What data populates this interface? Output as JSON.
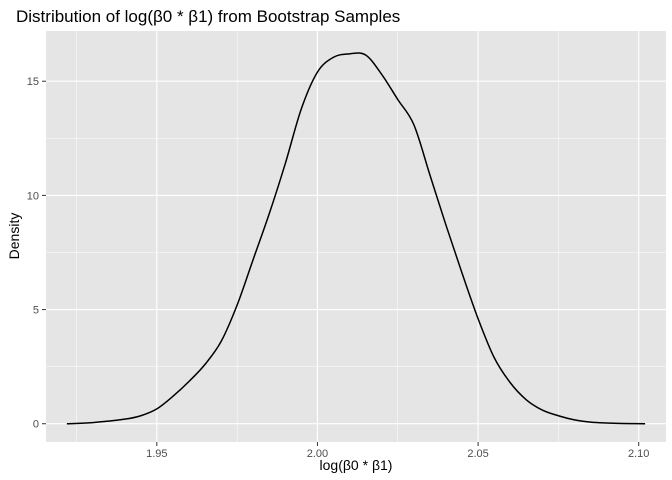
{
  "chart_data": {
    "type": "area",
    "title": "Distribution of log(β0 * β1) from Bootstrap Samples",
    "xlabel": "log(β0 * β1)",
    "ylabel": "Density",
    "xlim": [
      1.9155,
      2.1085
    ],
    "ylim": [
      -0.8,
      17.2
    ],
    "x_ticks": [
      1.95,
      2.0,
      2.05,
      2.1
    ],
    "x_tick_labels": [
      "1.95",
      "2.00",
      "2.05",
      "2.10"
    ],
    "y_ticks": [
      0,
      5,
      10,
      15
    ],
    "y_tick_labels": [
      "0",
      "5",
      "10",
      "15"
    ],
    "grid": true,
    "colors": {
      "panel": "#e5e5e5",
      "grid": "#ffffff",
      "line": "#000000"
    },
    "series": [
      {
        "x": [
          1.922,
          1.93,
          1.94,
          1.945,
          1.95,
          1.955,
          1.96,
          1.965,
          1.97,
          1.975,
          1.98,
          1.985,
          1.99,
          1.995,
          2.0,
          2.005,
          2.01,
          2.015,
          2.02,
          2.025,
          2.03,
          2.035,
          2.04,
          2.045,
          2.05,
          2.055,
          2.06,
          2.065,
          2.07,
          2.075,
          2.08,
          2.085,
          2.09,
          2.095,
          2.102
        ],
        "y": [
          0.0,
          0.05,
          0.2,
          0.35,
          0.65,
          1.2,
          1.85,
          2.6,
          3.6,
          5.2,
          7.2,
          9.2,
          11.4,
          13.8,
          15.4,
          16.05,
          16.2,
          16.15,
          15.3,
          14.2,
          13.1,
          10.9,
          8.7,
          6.6,
          4.6,
          2.9,
          1.8,
          1.05,
          0.6,
          0.35,
          0.17,
          0.07,
          0.03,
          0.01,
          0.0
        ]
      }
    ]
  }
}
